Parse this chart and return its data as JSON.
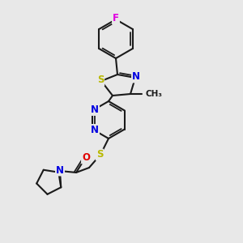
{
  "background_color": "#e8e8e8",
  "bond_color": "#1a1a1a",
  "atom_colors": {
    "F": "#e000e0",
    "S": "#b8b800",
    "N": "#0000e0",
    "O": "#e00000",
    "C": "#1a1a1a"
  },
  "figsize": [
    3.0,
    3.0
  ],
  "dpi": 100,
  "lw": 1.5,
  "fs": 8.5
}
